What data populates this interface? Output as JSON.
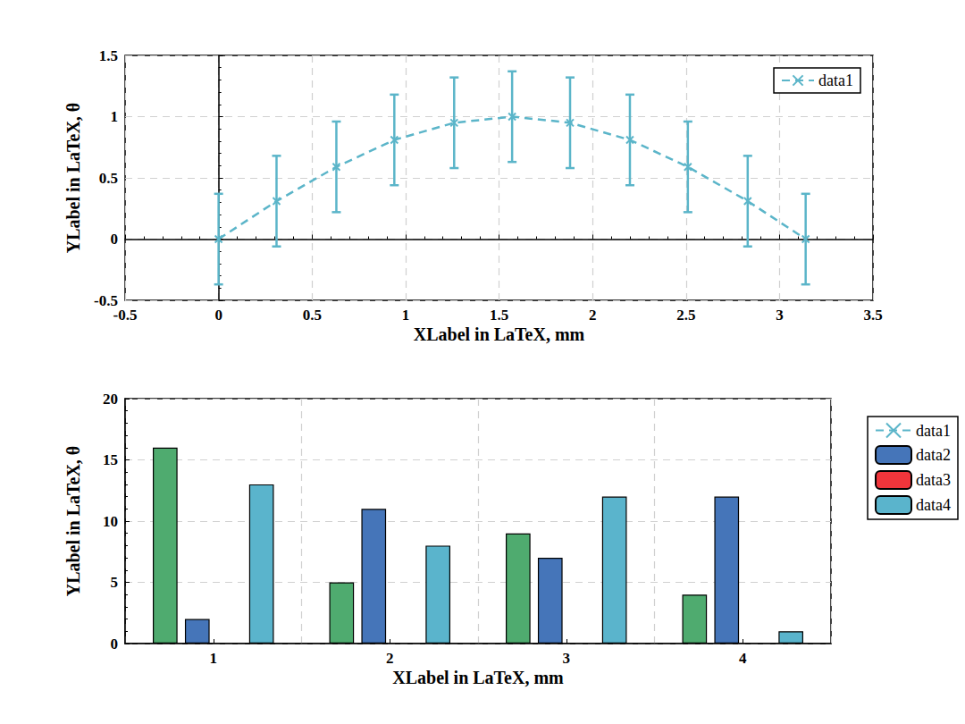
{
  "chart_data": [
    {
      "type": "line",
      "xlabel": "XLabel in LaTeX, mm",
      "ylabel": "YLabel in LaTeX, θ",
      "x": [
        0,
        0.31,
        0.63,
        0.94,
        1.26,
        1.57,
        1.88,
        2.2,
        2.51,
        2.83,
        3.14
      ],
      "series": [
        {
          "name": "data1",
          "color": "#5bb5c9",
          "marker": "x",
          "line_style": "dashed",
          "values": [
            0,
            0.31,
            0.59,
            0.81,
            0.95,
            1,
            0.95,
            0.81,
            0.59,
            0.31,
            0
          ],
          "error": [
            0.37,
            0.37,
            0.37,
            0.37,
            0.37,
            0.37,
            0.37,
            0.37,
            0.37,
            0.37,
            0.37
          ]
        }
      ],
      "xlim": [
        -0.5,
        3.5
      ],
      "xticks": [
        -0.5,
        0,
        0.5,
        1,
        1.5,
        2,
        2.5,
        3,
        3.5
      ],
      "ylim": [
        -0.5,
        1.5
      ],
      "yticks": [
        -0.5,
        0,
        0.5,
        1,
        1.5
      ],
      "grid": true,
      "legend": "top-right"
    },
    {
      "type": "bar",
      "xlabel": "XLabel in LaTeX, mm",
      "ylabel": "YLabel in LaTeX, θ",
      "categories": [
        "1",
        "2",
        "3",
        "4"
      ],
      "series": [
        {
          "name": "data1",
          "color": "#4fab6f",
          "values": [
            16,
            5,
            9,
            4
          ]
        },
        {
          "name": "data2",
          "color": "#4575b9",
          "values": [
            2,
            11,
            7,
            12
          ]
        },
        {
          "name": "data3",
          "color": "#f0353b",
          "values": [
            null,
            null,
            null,
            null
          ]
        },
        {
          "name": "data4",
          "color": "#5ab4cc",
          "values": [
            13,
            8,
            12,
            1
          ]
        }
      ],
      "ylim": [
        0,
        20
      ],
      "yticks": [
        0,
        5,
        10,
        15,
        20
      ],
      "grid": true,
      "legend": "right"
    }
  ]
}
